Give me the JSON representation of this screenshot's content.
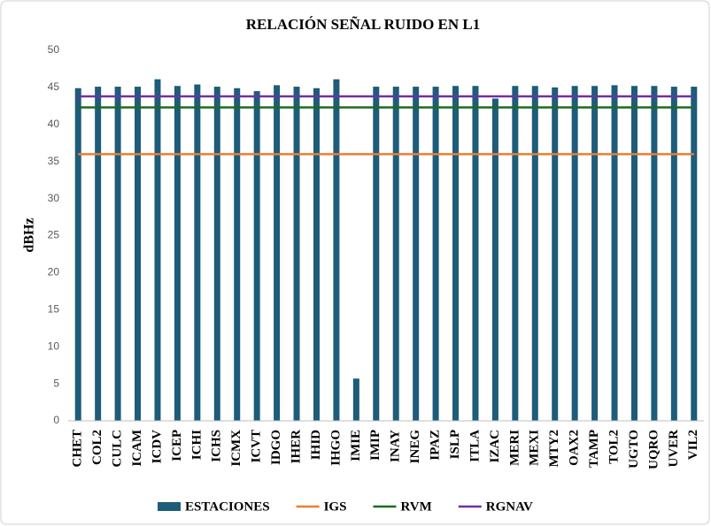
{
  "chart_data": {
    "type": "bar",
    "title": "RELACIÓN SEÑAL RUIDO EN L1",
    "y_label": "dBHz",
    "categories": [
      "CHET",
      "COL2",
      "CULC",
      "ICAM",
      "ICDV",
      "ICEP",
      "ICHI",
      "ICHS",
      "ICMX",
      "ICVT",
      "IDGO",
      "IHER",
      "IHID",
      "IHGO",
      "IMIE",
      "IMIP",
      "INAY",
      "INEG",
      "IPAZ",
      "ISLP",
      "ITLA",
      "IZAC",
      "MERI",
      "MEXI",
      "MTY2",
      "OAX2",
      "TAMP",
      "TOL2",
      "UGTO",
      "UQRO",
      "UVER",
      "VIL2"
    ],
    "series": [
      {
        "name": "ESTACIONES",
        "type": "bar",
        "color": "#1d5c7a",
        "values": [
          44.9,
          45.1,
          45.1,
          45.1,
          46.1,
          45.2,
          45.4,
          45.1,
          44.9,
          44.5,
          45.3,
          45.1,
          44.9,
          46.1,
          5.7,
          45.1,
          45.1,
          45.1,
          45.1,
          45.2,
          45.2,
          43.5,
          45.2,
          45.2,
          45.0,
          45.2,
          45.2,
          45.3,
          45.2,
          45.2,
          45.1,
          45.1
        ]
      },
      {
        "name": "IGS",
        "type": "line",
        "color": "#ed7d31",
        "values": [
          36,
          36,
          36,
          36,
          36,
          36,
          36,
          36,
          36,
          36,
          36,
          36,
          36,
          36,
          36,
          36,
          36,
          36,
          36,
          36,
          36,
          36,
          36,
          36,
          36,
          36,
          36,
          36,
          36,
          36,
          36,
          36
        ]
      },
      {
        "name": "RVM",
        "type": "line",
        "color": "#1e6b1e",
        "values": [
          42.3,
          42.3,
          42.3,
          42.3,
          42.3,
          42.3,
          42.3,
          42.3,
          42.3,
          42.3,
          42.3,
          42.3,
          42.3,
          42.3,
          42.3,
          42.3,
          42.3,
          42.3,
          42.3,
          42.3,
          42.3,
          42.3,
          42.3,
          42.3,
          42.3,
          42.3,
          42.3,
          42.3,
          42.3,
          42.3,
          42.3,
          42.3
        ]
      },
      {
        "name": "RGNAV",
        "type": "line",
        "color": "#7030a0",
        "values": [
          43.8,
          43.8,
          43.8,
          43.8,
          43.8,
          43.8,
          43.8,
          43.8,
          43.8,
          43.8,
          43.8,
          43.8,
          43.8,
          43.8,
          43.8,
          43.8,
          43.8,
          43.8,
          43.8,
          43.8,
          43.8,
          43.8,
          43.8,
          43.8,
          43.8,
          43.8,
          43.8,
          43.8,
          43.8,
          43.8,
          43.8,
          43.8
        ]
      }
    ],
    "ylim": [
      0,
      50
    ],
    "yticks": [
      0,
      5,
      10,
      15,
      20,
      25,
      30,
      35,
      40,
      45,
      50
    ],
    "grid": false,
    "legend": "bottom"
  }
}
